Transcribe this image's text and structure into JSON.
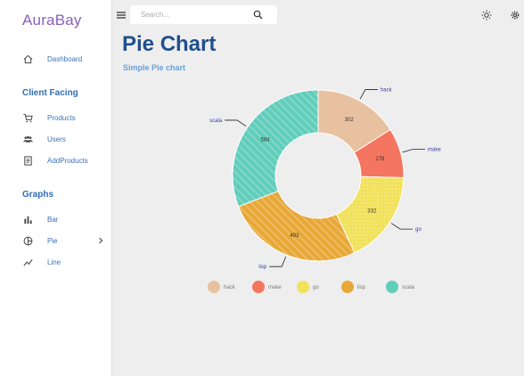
{
  "sidebar": {
    "brand": "AuraBay",
    "dashboard_label": "Dashboard",
    "section_client": "Client Facing",
    "products_label": "Products",
    "users_label": "Users",
    "addproducts_label": "AddProducts",
    "section_graphs": "Graphs",
    "bar_label": "Bar",
    "pie_label": "Pie",
    "line_label": "Line"
  },
  "topbar": {
    "search_placeholder": "Search..."
  },
  "page": {
    "title": "Pie Chart",
    "subtitle": "Simple Pie chart"
  },
  "colors": {
    "hack": "#e8c1a0",
    "make": "#f47560",
    "go": "#f1e15b",
    "lisp": "#e8a838",
    "scala": "#61cdbb"
  },
  "chart_data": {
    "type": "pie",
    "donut": true,
    "categories": [
      "hack",
      "make",
      "go",
      "lisp",
      "scala"
    ],
    "values": [
      302,
      178,
      332,
      493,
      584
    ],
    "legend": [
      "hack",
      "make",
      "go",
      "lisp",
      "scala"
    ],
    "legend_position": "bottom"
  }
}
